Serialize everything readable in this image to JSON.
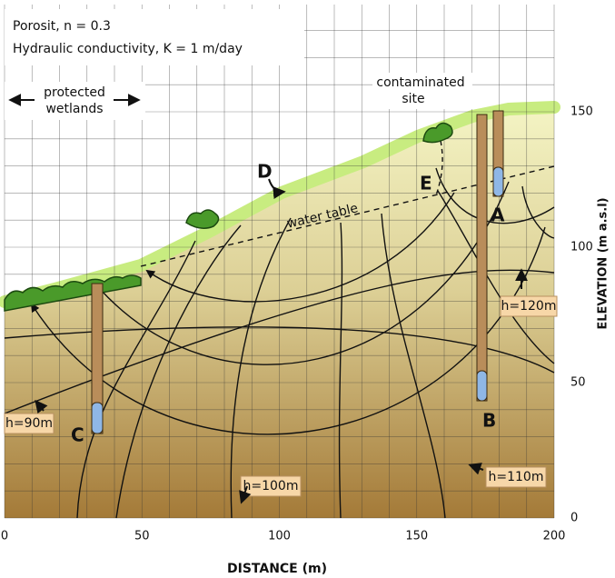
{
  "info": {
    "line1": "Porosit,  n = 0.3",
    "line2": "Hydraulic conductivity,  K = 1 m/day"
  },
  "wetlands": {
    "line1": "protected",
    "line2": "wetlands"
  },
  "site": {
    "line1": "contaminated",
    "line2": "site"
  },
  "points": {
    "d": "D",
    "e": "E",
    "a": "A",
    "b": "B",
    "c": "C"
  },
  "water_table": "water table",
  "heads": {
    "h120": "h=120m",
    "h90": "h=90m",
    "h100": "h=100m",
    "h110": "h=110m"
  },
  "axes": {
    "xlabel": "DISTANCE  (m)",
    "ylabel": "ELEVATION  (m  a.s.l)",
    "xticks": [
      0,
      50,
      100,
      150,
      200
    ],
    "yticks": [
      0,
      50,
      100,
      150
    ]
  }
}
